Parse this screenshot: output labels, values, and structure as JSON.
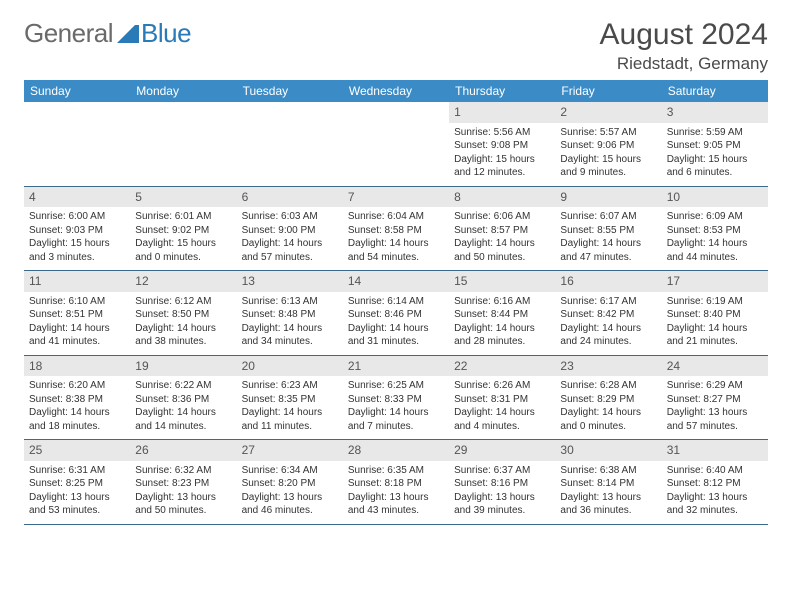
{
  "brand": {
    "text1": "General",
    "text2": "Blue"
  },
  "title": "August 2024",
  "location": "Riedstadt, Germany",
  "colors": {
    "header_bg": "#3b8bc7",
    "header_fg": "#ffffff",
    "rule": "#3b6a8c",
    "daynum_bg": "#e8e8e8",
    "text": "#333333",
    "logo_gray": "#6a6a6a",
    "logo_blue": "#2a7ab8"
  },
  "day_headers": [
    "Sunday",
    "Monday",
    "Tuesday",
    "Wednesday",
    "Thursday",
    "Friday",
    "Saturday"
  ],
  "weeks": [
    {
      "days": [
        {
          "n": "",
          "sr": "",
          "ss": "",
          "dl": ""
        },
        {
          "n": "",
          "sr": "",
          "ss": "",
          "dl": ""
        },
        {
          "n": "",
          "sr": "",
          "ss": "",
          "dl": ""
        },
        {
          "n": "",
          "sr": "",
          "ss": "",
          "dl": ""
        },
        {
          "n": "1",
          "sr": "Sunrise: 5:56 AM",
          "ss": "Sunset: 9:08 PM",
          "dl": "Daylight: 15 hours and 12 minutes."
        },
        {
          "n": "2",
          "sr": "Sunrise: 5:57 AM",
          "ss": "Sunset: 9:06 PM",
          "dl": "Daylight: 15 hours and 9 minutes."
        },
        {
          "n": "3",
          "sr": "Sunrise: 5:59 AM",
          "ss": "Sunset: 9:05 PM",
          "dl": "Daylight: 15 hours and 6 minutes."
        }
      ]
    },
    {
      "days": [
        {
          "n": "4",
          "sr": "Sunrise: 6:00 AM",
          "ss": "Sunset: 9:03 PM",
          "dl": "Daylight: 15 hours and 3 minutes."
        },
        {
          "n": "5",
          "sr": "Sunrise: 6:01 AM",
          "ss": "Sunset: 9:02 PM",
          "dl": "Daylight: 15 hours and 0 minutes."
        },
        {
          "n": "6",
          "sr": "Sunrise: 6:03 AM",
          "ss": "Sunset: 9:00 PM",
          "dl": "Daylight: 14 hours and 57 minutes."
        },
        {
          "n": "7",
          "sr": "Sunrise: 6:04 AM",
          "ss": "Sunset: 8:58 PM",
          "dl": "Daylight: 14 hours and 54 minutes."
        },
        {
          "n": "8",
          "sr": "Sunrise: 6:06 AM",
          "ss": "Sunset: 8:57 PM",
          "dl": "Daylight: 14 hours and 50 minutes."
        },
        {
          "n": "9",
          "sr": "Sunrise: 6:07 AM",
          "ss": "Sunset: 8:55 PM",
          "dl": "Daylight: 14 hours and 47 minutes."
        },
        {
          "n": "10",
          "sr": "Sunrise: 6:09 AM",
          "ss": "Sunset: 8:53 PM",
          "dl": "Daylight: 14 hours and 44 minutes."
        }
      ]
    },
    {
      "days": [
        {
          "n": "11",
          "sr": "Sunrise: 6:10 AM",
          "ss": "Sunset: 8:51 PM",
          "dl": "Daylight: 14 hours and 41 minutes."
        },
        {
          "n": "12",
          "sr": "Sunrise: 6:12 AM",
          "ss": "Sunset: 8:50 PM",
          "dl": "Daylight: 14 hours and 38 minutes."
        },
        {
          "n": "13",
          "sr": "Sunrise: 6:13 AM",
          "ss": "Sunset: 8:48 PM",
          "dl": "Daylight: 14 hours and 34 minutes."
        },
        {
          "n": "14",
          "sr": "Sunrise: 6:14 AM",
          "ss": "Sunset: 8:46 PM",
          "dl": "Daylight: 14 hours and 31 minutes."
        },
        {
          "n": "15",
          "sr": "Sunrise: 6:16 AM",
          "ss": "Sunset: 8:44 PM",
          "dl": "Daylight: 14 hours and 28 minutes."
        },
        {
          "n": "16",
          "sr": "Sunrise: 6:17 AM",
          "ss": "Sunset: 8:42 PM",
          "dl": "Daylight: 14 hours and 24 minutes."
        },
        {
          "n": "17",
          "sr": "Sunrise: 6:19 AM",
          "ss": "Sunset: 8:40 PM",
          "dl": "Daylight: 14 hours and 21 minutes."
        }
      ]
    },
    {
      "days": [
        {
          "n": "18",
          "sr": "Sunrise: 6:20 AM",
          "ss": "Sunset: 8:38 PM",
          "dl": "Daylight: 14 hours and 18 minutes."
        },
        {
          "n": "19",
          "sr": "Sunrise: 6:22 AM",
          "ss": "Sunset: 8:36 PM",
          "dl": "Daylight: 14 hours and 14 minutes."
        },
        {
          "n": "20",
          "sr": "Sunrise: 6:23 AM",
          "ss": "Sunset: 8:35 PM",
          "dl": "Daylight: 14 hours and 11 minutes."
        },
        {
          "n": "21",
          "sr": "Sunrise: 6:25 AM",
          "ss": "Sunset: 8:33 PM",
          "dl": "Daylight: 14 hours and 7 minutes."
        },
        {
          "n": "22",
          "sr": "Sunrise: 6:26 AM",
          "ss": "Sunset: 8:31 PM",
          "dl": "Daylight: 14 hours and 4 minutes."
        },
        {
          "n": "23",
          "sr": "Sunrise: 6:28 AM",
          "ss": "Sunset: 8:29 PM",
          "dl": "Daylight: 14 hours and 0 minutes."
        },
        {
          "n": "24",
          "sr": "Sunrise: 6:29 AM",
          "ss": "Sunset: 8:27 PM",
          "dl": "Daylight: 13 hours and 57 minutes."
        }
      ]
    },
    {
      "days": [
        {
          "n": "25",
          "sr": "Sunrise: 6:31 AM",
          "ss": "Sunset: 8:25 PM",
          "dl": "Daylight: 13 hours and 53 minutes."
        },
        {
          "n": "26",
          "sr": "Sunrise: 6:32 AM",
          "ss": "Sunset: 8:23 PM",
          "dl": "Daylight: 13 hours and 50 minutes."
        },
        {
          "n": "27",
          "sr": "Sunrise: 6:34 AM",
          "ss": "Sunset: 8:20 PM",
          "dl": "Daylight: 13 hours and 46 minutes."
        },
        {
          "n": "28",
          "sr": "Sunrise: 6:35 AM",
          "ss": "Sunset: 8:18 PM",
          "dl": "Daylight: 13 hours and 43 minutes."
        },
        {
          "n": "29",
          "sr": "Sunrise: 6:37 AM",
          "ss": "Sunset: 8:16 PM",
          "dl": "Daylight: 13 hours and 39 minutes."
        },
        {
          "n": "30",
          "sr": "Sunrise: 6:38 AM",
          "ss": "Sunset: 8:14 PM",
          "dl": "Daylight: 13 hours and 36 minutes."
        },
        {
          "n": "31",
          "sr": "Sunrise: 6:40 AM",
          "ss": "Sunset: 8:12 PM",
          "dl": "Daylight: 13 hours and 32 minutes."
        }
      ]
    }
  ]
}
